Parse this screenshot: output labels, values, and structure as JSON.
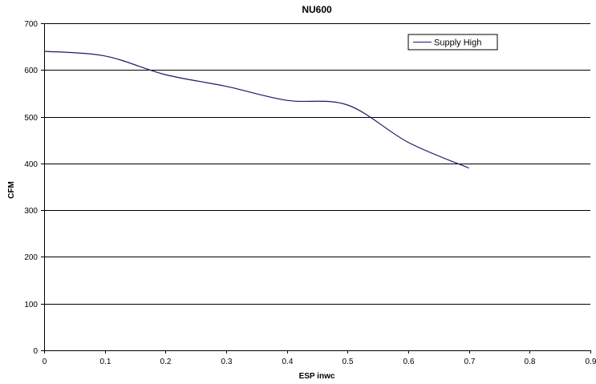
{
  "chart_data": {
    "type": "line",
    "title": "NU600",
    "xlabel": "ESP inwc",
    "ylabel": "CFM",
    "xlim": [
      0,
      0.9
    ],
    "ylim": [
      0,
      700
    ],
    "x_ticks": [
      0,
      0.1,
      0.2,
      0.3,
      0.4,
      0.5,
      0.6,
      0.7,
      0.8,
      0.9
    ],
    "x_tick_labels": [
      "0",
      "0.1",
      "0.2",
      "0.3",
      "0.4",
      "0.5",
      "0.6",
      "0.7",
      "0.8",
      "0.9"
    ],
    "y_ticks": [
      0,
      100,
      200,
      300,
      400,
      500,
      600,
      700
    ],
    "y_tick_labels": [
      "0",
      "100",
      "200",
      "300",
      "400",
      "500",
      "600",
      "700"
    ],
    "grid": {
      "horizontal": true,
      "vertical": false
    },
    "legend_position": "top-right",
    "series": [
      {
        "name": "Supply High",
        "color": "#1a1a66",
        "x": [
          0,
          0.1,
          0.2,
          0.3,
          0.4,
          0.5,
          0.6,
          0.7
        ],
        "y": [
          640,
          630,
          590,
          565,
          535,
          525,
          445,
          390
        ]
      }
    ]
  }
}
